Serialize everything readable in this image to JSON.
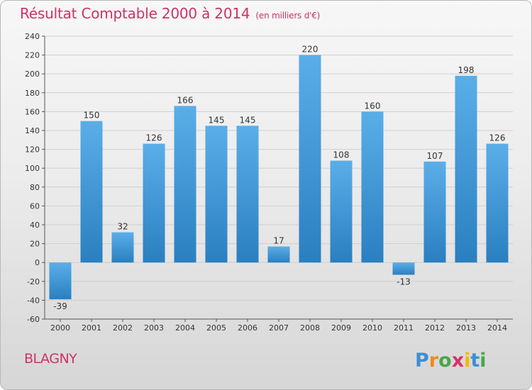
{
  "title": "Résultat Comptable 2000 à 2014",
  "subtitle": "(en milliers d'€)",
  "city": "BLAGNY",
  "logo_text": "Proxiti",
  "colors": {
    "title": "#cc3366",
    "bar_light": "#5aaee8",
    "bar_dark": "#2a7fc0",
    "grid": "#cfcfcf"
  },
  "chart_data": {
    "type": "bar",
    "categories": [
      "2000",
      "2001",
      "2002",
      "2003",
      "2004",
      "2005",
      "2006",
      "2007",
      "2008",
      "2009",
      "2010",
      "2011",
      "2012",
      "2013",
      "2014"
    ],
    "values": [
      -39,
      150,
      32,
      126,
      166,
      145,
      145,
      17,
      220,
      108,
      160,
      -13,
      107,
      198,
      126
    ],
    "labels": [
      "-39",
      "150",
      "32",
      "126",
      "166",
      "145",
      "145",
      "17",
      "220",
      "108",
      "160",
      "-13",
      "107",
      "198",
      "126"
    ],
    "ylim": [
      -60,
      240
    ],
    "yticks": [
      -60,
      -40,
      -20,
      0,
      20,
      40,
      60,
      80,
      100,
      120,
      140,
      160,
      180,
      200,
      220,
      240
    ],
    "grid": true,
    "xlabel": "",
    "ylabel": ""
  }
}
